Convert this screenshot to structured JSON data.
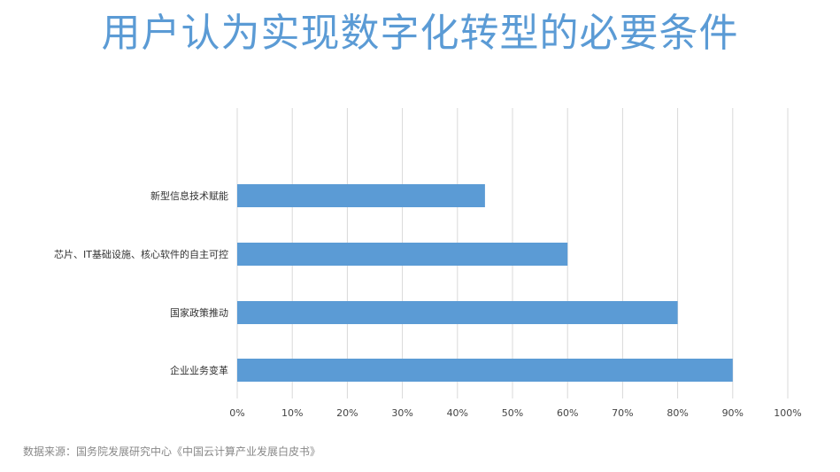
{
  "title": "用户认为实现数字化转型的必要条件",
  "source": "数据来源：国务院发展研究中心《中国云计算产业发展白皮书》",
  "colors": {
    "bar": "#5b9bd5",
    "title": "#5b9bd5",
    "grid": "#d9d9d9"
  },
  "chart_data": {
    "type": "bar",
    "orientation": "horizontal",
    "title": "用户认为实现数字化转型的必要条件",
    "xlabel": "",
    "ylabel": "",
    "categories": [
      "新型信息技术赋能",
      "芯片、IT基础设施、核心软件的自主可控",
      "国家政策推动",
      "企业业务变革"
    ],
    "values": [
      0.45,
      0.6,
      0.8,
      0.9
    ],
    "xlim": [
      0,
      1
    ],
    "x_ticks": [
      "0%",
      "10%",
      "20%",
      "30%",
      "40%",
      "50%",
      "60%",
      "70%",
      "80%",
      "90%",
      "100%"
    ],
    "grid": true,
    "legend": false
  }
}
